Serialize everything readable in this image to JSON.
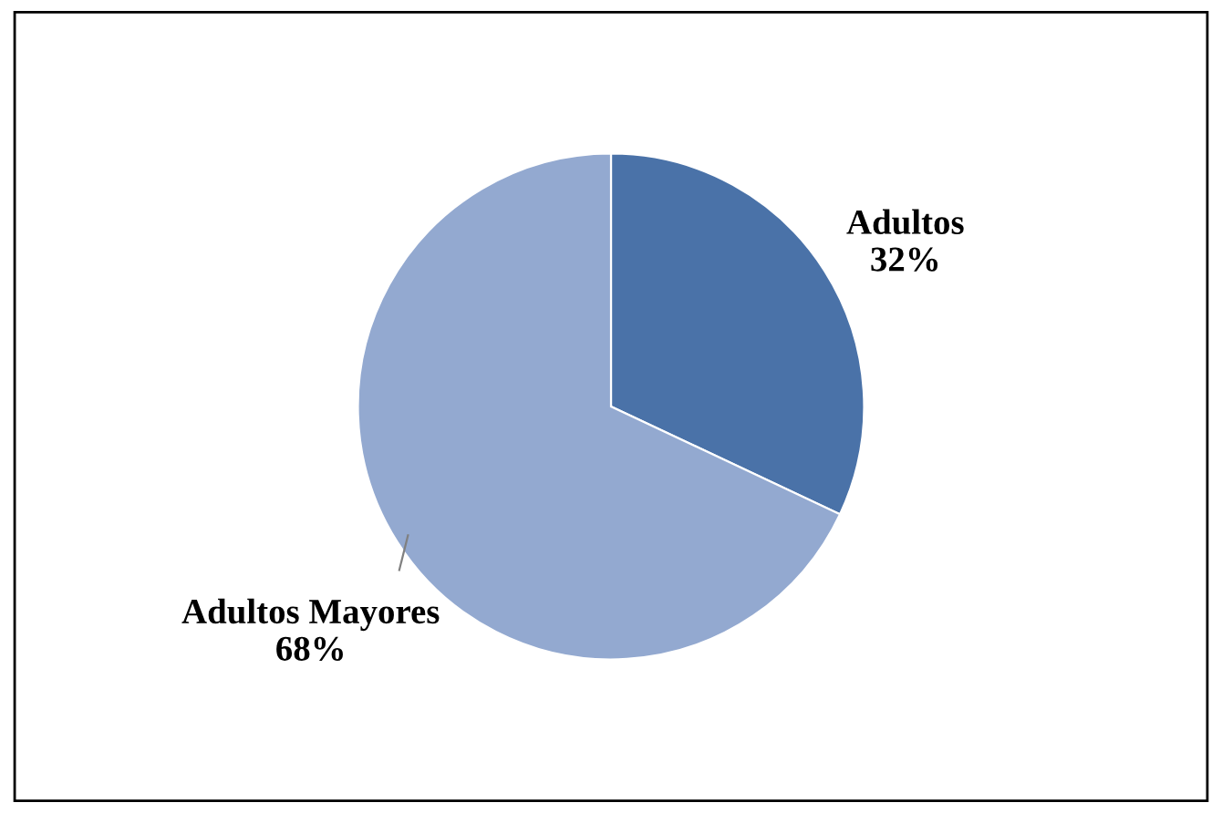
{
  "chart_data": {
    "type": "pie",
    "categories": [
      "Adultos",
      "Adultos Mayores"
    ],
    "values": [
      32,
      68
    ],
    "colors": [
      "#4a72a8",
      "#93a9d0"
    ],
    "value_labels": [
      "32%",
      "68%"
    ],
    "legend": false
  }
}
